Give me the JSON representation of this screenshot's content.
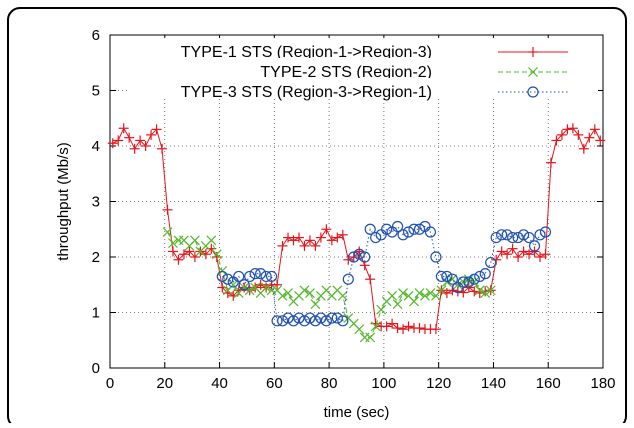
{
  "chart_data": {
    "type": "line",
    "xlabel": "time (sec)",
    "ylabel": "throughput (Mb/s)",
    "xlim": [
      0,
      180
    ],
    "ylim": [
      0,
      6
    ],
    "xticks": [
      "0",
      "20",
      "40",
      "60",
      "80",
      "100",
      "120",
      "140",
      "160",
      "180"
    ],
    "yticks": [
      "0",
      "1",
      "2",
      "3",
      "4",
      "5",
      "6"
    ],
    "grid": true,
    "legend_position": "top",
    "series": [
      {
        "name": "TYPE-1 STS (Region-1->Region-3)",
        "color": "#e8141c",
        "marker": "plus",
        "line": "solid",
        "x": [
          1,
          3,
          5,
          7,
          9,
          11,
          13,
          15,
          17,
          19,
          21,
          23,
          25,
          27,
          29,
          31,
          33,
          35,
          37,
          39,
          41,
          43,
          45,
          47,
          49,
          51,
          53,
          55,
          57,
          59,
          61,
          63,
          65,
          67,
          69,
          71,
          73,
          75,
          77,
          79,
          81,
          83,
          85,
          87,
          89,
          91,
          93,
          95,
          97,
          99,
          101,
          103,
          105,
          107,
          109,
          111,
          113,
          115,
          117,
          119,
          121,
          123,
          125,
          127,
          129,
          131,
          133,
          135,
          137,
          139,
          141,
          143,
          145,
          147,
          149,
          151,
          153,
          155,
          157,
          159,
          161,
          163,
          165,
          167,
          169,
          171,
          173,
          175,
          177,
          179
        ],
        "values": [
          4.05,
          4.1,
          4.32,
          4.15,
          3.95,
          4.1,
          4.0,
          4.2,
          4.3,
          3.95,
          2.85,
          2.1,
          1.95,
          2.05,
          2.1,
          2.0,
          2.1,
          2.05,
          2.15,
          2.0,
          1.45,
          1.35,
          1.3,
          1.4,
          1.45,
          1.4,
          1.45,
          1.5,
          1.45,
          1.5,
          1.5,
          2.2,
          2.35,
          2.3,
          2.35,
          2.2,
          2.3,
          2.2,
          2.35,
          2.5,
          2.3,
          2.35,
          2.4,
          1.95,
          2.0,
          2.1,
          1.85,
          1.6,
          0.8,
          0.75,
          0.75,
          0.8,
          0.72,
          0.7,
          0.75,
          0.72,
          0.72,
          0.7,
          0.7,
          0.7,
          1.4,
          1.35,
          1.4,
          1.38,
          1.36,
          1.45,
          1.38,
          1.35,
          1.38,
          1.4,
          1.95,
          2.1,
          2.05,
          2.15,
          2.0,
          2.1,
          2.05,
          2.1,
          2.0,
          2.05,
          3.7,
          4.1,
          4.2,
          4.3,
          4.32,
          4.2,
          3.95,
          4.15,
          4.3,
          4.1
        ]
      },
      {
        "name": "TYPE-2 STS (Region-2)",
        "color": "#55b82e",
        "marker": "cross",
        "line": "dashed",
        "x": [
          21,
          23,
          25,
          27,
          29,
          31,
          33,
          35,
          37,
          39,
          41,
          43,
          45,
          47,
          49,
          51,
          53,
          55,
          57,
          59,
          61,
          63,
          65,
          67,
          69,
          71,
          73,
          75,
          77,
          79,
          81,
          83,
          85,
          87,
          89,
          91,
          93,
          95,
          97,
          99,
          101,
          103,
          105,
          107,
          109,
          111,
          113,
          115,
          117,
          119,
          121,
          123,
          125,
          127,
          129,
          131,
          133,
          135,
          137,
          139
        ],
        "values": [
          2.45,
          2.25,
          2.3,
          2.3,
          2.2,
          2.3,
          2.1,
          2.2,
          2.3,
          2.05,
          1.75,
          1.4,
          1.5,
          1.35,
          1.45,
          1.4,
          1.45,
          1.35,
          1.45,
          1.4,
          1.4,
          1.3,
          1.35,
          1.2,
          1.3,
          1.4,
          1.35,
          1.15,
          1.3,
          1.4,
          1.3,
          1.4,
          1.3,
          0.9,
          0.8,
          0.7,
          0.55,
          0.55,
          0.75,
          1.05,
          1.2,
          1.3,
          1.15,
          1.35,
          1.3,
          1.2,
          1.35,
          1.3,
          1.35,
          1.3,
          1.4,
          1.55,
          1.6,
          1.5,
          1.55,
          1.6,
          1.55,
          1.4,
          1.35,
          1.4
        ]
      },
      {
        "name": "TYPE-3 STS (Region-3->Region-1)",
        "color": "#2050b0",
        "marker": "circle",
        "line": "dotted",
        "x": [
          41,
          43,
          45,
          47,
          49,
          51,
          53,
          55,
          57,
          59,
          61,
          63,
          65,
          67,
          69,
          71,
          73,
          75,
          77,
          79,
          81,
          83,
          85,
          87,
          89,
          91,
          93,
          95,
          97,
          99,
          101,
          103,
          105,
          107,
          109,
          111,
          113,
          115,
          117,
          119,
          121,
          123,
          125,
          127,
          129,
          131,
          133,
          135,
          137,
          139,
          141,
          143,
          145,
          147,
          149,
          151,
          153,
          155,
          157,
          159
        ],
        "values": [
          1.65,
          1.6,
          1.55,
          1.65,
          1.5,
          1.65,
          1.7,
          1.7,
          1.65,
          1.65,
          0.85,
          0.85,
          0.9,
          0.85,
          0.9,
          0.85,
          0.9,
          0.85,
          0.9,
          0.85,
          0.9,
          0.9,
          0.85,
          1.6,
          2.0,
          2.05,
          2.0,
          2.5,
          2.35,
          2.4,
          2.5,
          2.45,
          2.55,
          2.4,
          2.45,
          2.5,
          2.5,
          2.55,
          2.45,
          2.0,
          1.65,
          1.65,
          1.6,
          1.45,
          1.55,
          1.55,
          1.6,
          1.65,
          1.7,
          1.9,
          2.35,
          2.4,
          2.4,
          2.35,
          2.35,
          2.4,
          2.35,
          2.2,
          2.4,
          2.45
        ]
      }
    ]
  }
}
